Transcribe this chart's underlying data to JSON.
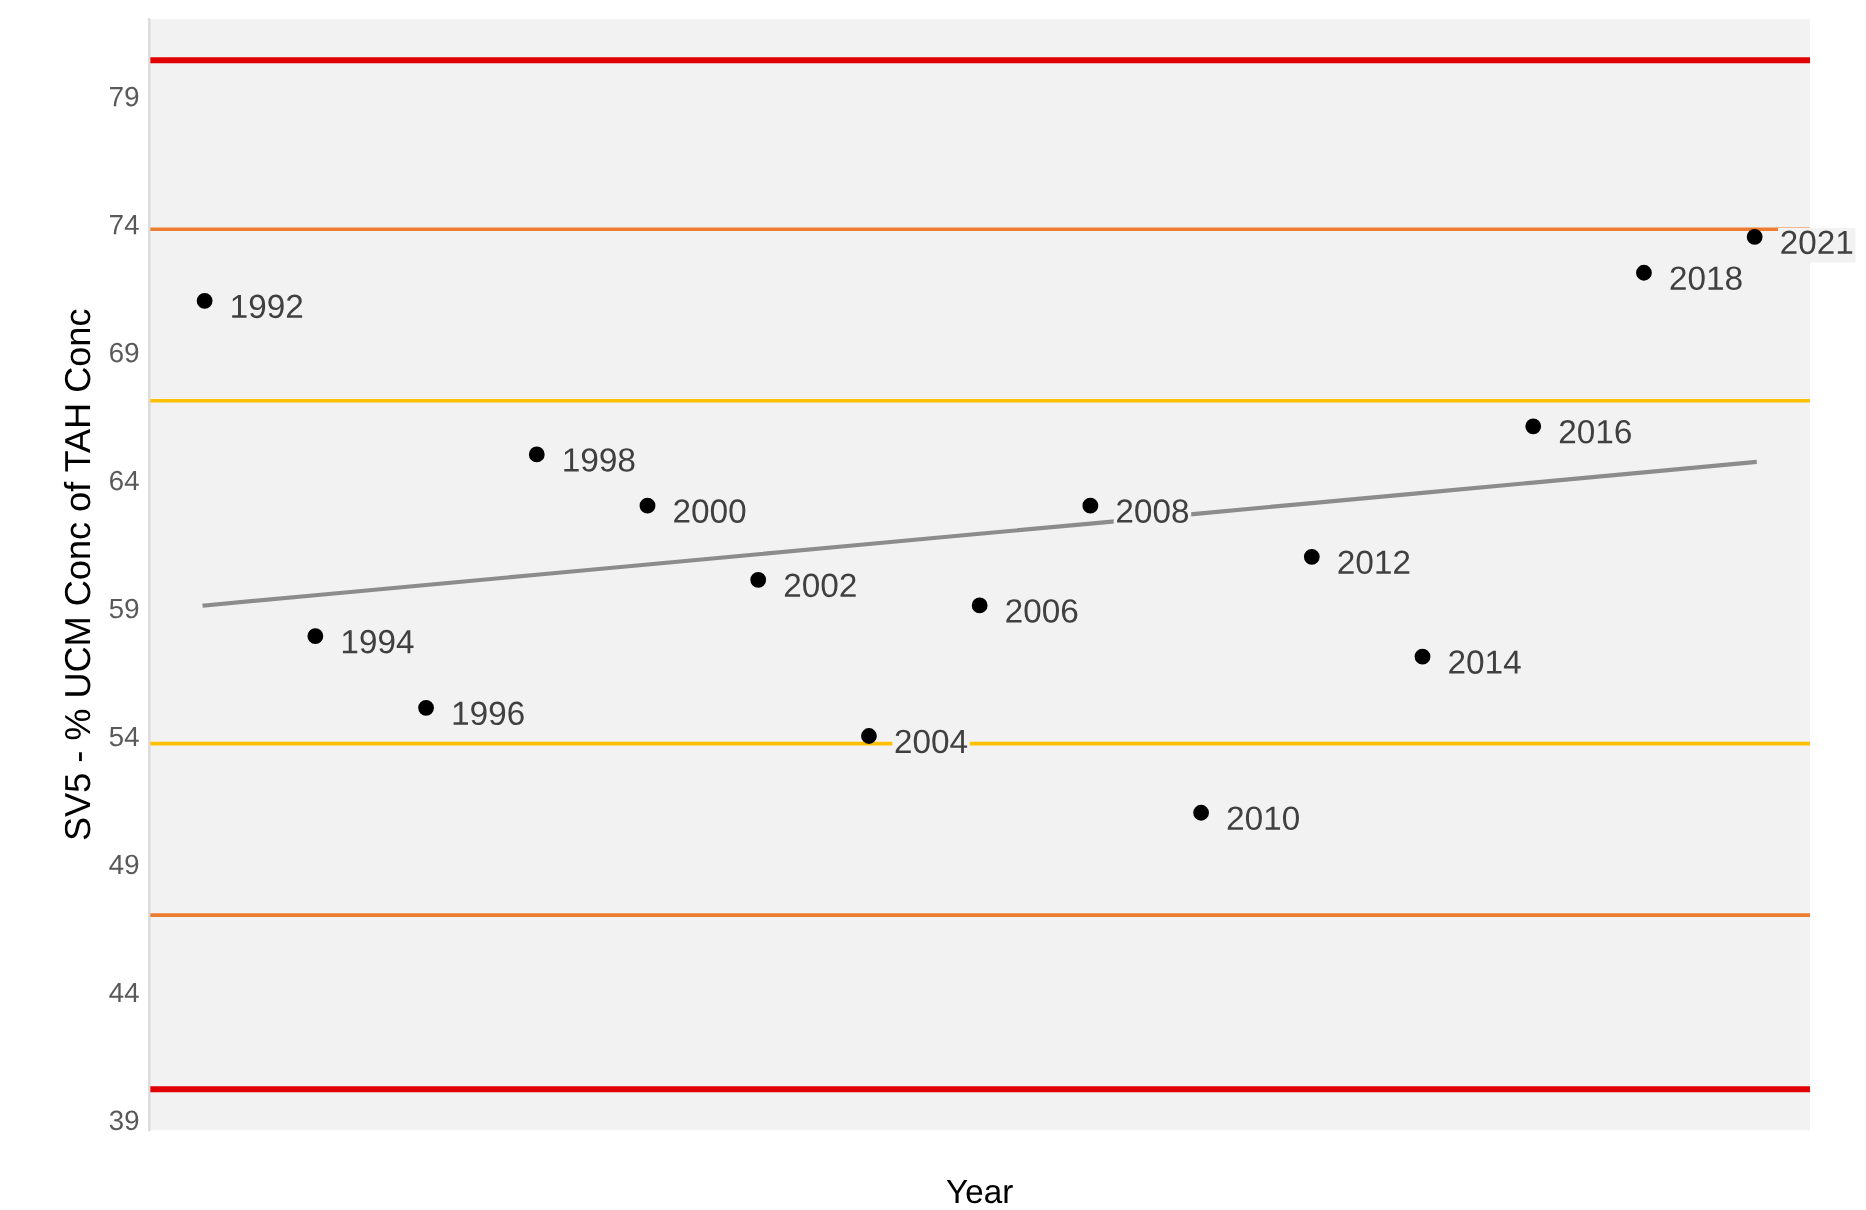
{
  "chart_data": {
    "type": "scatter",
    "xlabel": "Year",
    "ylabel": "SV5 - % UCM Conc of TAH Conc",
    "categories": [
      null,
      null,
      null,
      null,
      null,
      null,
      null,
      null,
      null,
      null,
      null,
      null,
      null,
      null,
      null
    ],
    "series": [
      {
        "type": "scatter",
        "color": "#000000",
        "marker": "circle",
        "values": [
          71.0,
          57.9,
          55.1,
          65.0,
          63.0,
          60.1,
          54.0,
          59.1,
          63.0,
          51.0,
          61.0,
          57.1,
          66.1,
          72.1,
          73.5
        ]
      },
      {
        "type": "line",
        "color": "#8c8c8c",
        "marker": "none",
        "values": [
          59.1,
          59.5,
          59.9,
          60.3,
          60.7,
          61.1,
          61.5,
          61.9,
          62.3,
          62.7,
          63.1,
          63.5,
          63.9,
          64.3,
          64.7
        ]
      }
    ],
    "ref_lines": [
      {
        "axis": "y",
        "value": 80.4,
        "color": "#e00000"
      },
      {
        "axis": "y",
        "value": 73.8,
        "color": "#ed7d31"
      },
      {
        "axis": "y",
        "value": 67.1,
        "color": "#ffc000"
      },
      {
        "axis": "y",
        "value": 53.7,
        "color": "#ffc000"
      },
      {
        "axis": "y",
        "value": 47.0,
        "color": "#ed7d31"
      },
      {
        "axis": "y",
        "value": 40.2,
        "color": "#e00000"
      }
    ],
    "annotations": [
      "1992",
      "1994",
      "1996",
      "1998",
      "2000",
      "2002",
      "2004",
      "2006",
      "2008",
      "2010",
      "2012",
      "2014",
      "2016",
      "2018",
      "2021"
    ],
    "ylim": [
      38.6,
      82
    ],
    "yticks": [
      39,
      44,
      49,
      54,
      59,
      64,
      69,
      74,
      79
    ],
    "grid": false,
    "legend": false
  }
}
